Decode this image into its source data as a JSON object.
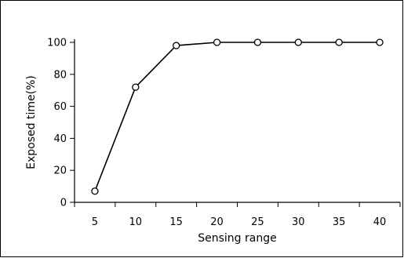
{
  "chart_data": {
    "type": "line",
    "title": "",
    "xlabel": "Sensing range",
    "ylabel": "Exposed time(%)",
    "x": [
      5,
      10,
      15,
      20,
      25,
      30,
      35,
      40
    ],
    "x_tick_labels": [
      "5",
      "10",
      "15",
      "20",
      "25",
      "30",
      "35",
      "40"
    ],
    "y_ticks": [
      0,
      20,
      40,
      60,
      80,
      100
    ],
    "y_tick_labels": [
      "0",
      "20",
      "40",
      "60",
      "80",
      "100"
    ],
    "ylim": [
      0,
      100
    ],
    "grid": false,
    "legend": "none",
    "series": [
      {
        "values": [
          7,
          72,
          98,
          100,
          100,
          100,
          100,
          100
        ]
      }
    ],
    "colors": {
      "line": "#000000",
      "marker_fill": "#ffffff",
      "frame": "#000000"
    }
  }
}
